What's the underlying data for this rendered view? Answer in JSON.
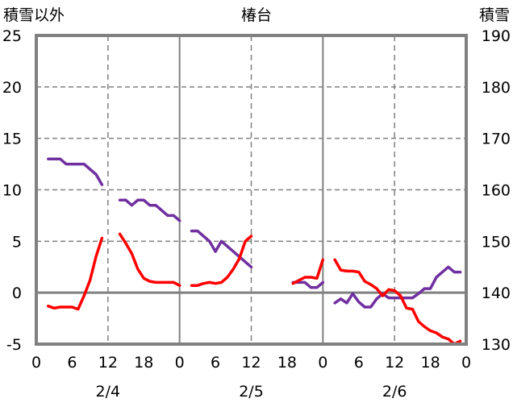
{
  "chart_data": {
    "type": "line",
    "title": "椿台",
    "ylabel_left": "積雪以外",
    "ylabel_right": "積雪",
    "ylim_left": [
      -5,
      25
    ],
    "ylim_right": [
      130,
      190
    ],
    "yticks_left": [
      "-5",
      "0",
      "5",
      "10",
      "15",
      "20",
      "25"
    ],
    "yticks_right": [
      "130",
      "140",
      "150",
      "160",
      "170",
      "180",
      "190"
    ],
    "xlim_hours": [
      0,
      72
    ],
    "xtick_labels": [
      "0",
      "6",
      "12",
      "18",
      "0",
      "6",
      "12",
      "18",
      "0",
      "6",
      "12",
      "18",
      "0"
    ],
    "date_labels": [
      "2/4",
      "2/5",
      "2/6"
    ],
    "grid": true,
    "series": [
      {
        "name": "積雪",
        "axis": "right",
        "color": "#7030A0",
        "segments": [
          {
            "start": 2,
            "values": [
              166,
              166,
              166,
              165,
              165,
              165,
              165,
              164,
              163,
              161
            ]
          },
          {
            "start": 14,
            "values": [
              158,
              158,
              157,
              158,
              158,
              157,
              157,
              156,
              155,
              155,
              154
            ]
          },
          {
            "start": 26,
            "values": [
              152,
              152,
              151,
              150,
              148,
              150,
              149,
              148,
              147,
              146,
              145
            ]
          },
          {
            "start": 43,
            "values": [
              142,
              142,
              142,
              141,
              141,
              142
            ]
          },
          {
            "start": 50,
            "values": [
              138,
              138.8,
              138,
              139.8,
              138.2,
              137.2,
              137.2,
              138.8,
              139.8,
              139,
              139,
              139,
              139,
              139,
              139.8,
              140.8,
              140.8,
              143,
              144,
              145,
              144,
              144
            ]
          }
        ]
      },
      {
        "name": "積雪以外",
        "axis": "left",
        "color": "#FF0000",
        "segments": [
          {
            "start": 2,
            "values": [
              -1.3,
              -1.5,
              -1.4,
              -1.4,
              -1.4,
              -1.6,
              -0.3,
              1.2,
              3.5,
              5.3
            ]
          },
          {
            "start": 14,
            "values": [
              5.7,
              4.8,
              3.8,
              2.3,
              1.4,
              1.1,
              1.0,
              1.0,
              1.0,
              1.0,
              0.7
            ]
          },
          {
            "start": 26,
            "values": [
              0.7,
              0.7,
              0.9,
              1.0,
              0.9,
              1.0,
              1.5,
              2.3,
              3.3,
              5.0,
              5.5
            ]
          },
          {
            "start": 43,
            "values": [
              0.9,
              1.2,
              1.5,
              1.5,
              1.4,
              3.2
            ]
          },
          {
            "start": 50,
            "values": [
              3.2,
              2.2,
              2.1,
              2.1,
              2.0,
              1.1,
              0.8,
              0.4,
              -0.3,
              0.3,
              0.2,
              -0.3,
              -1.5,
              -1.6,
              -2.8,
              -3.3,
              -3.7,
              -3.9,
              -4.3,
              -4.5,
              -5.0,
              -4.7
            ]
          }
        ]
      }
    ]
  }
}
